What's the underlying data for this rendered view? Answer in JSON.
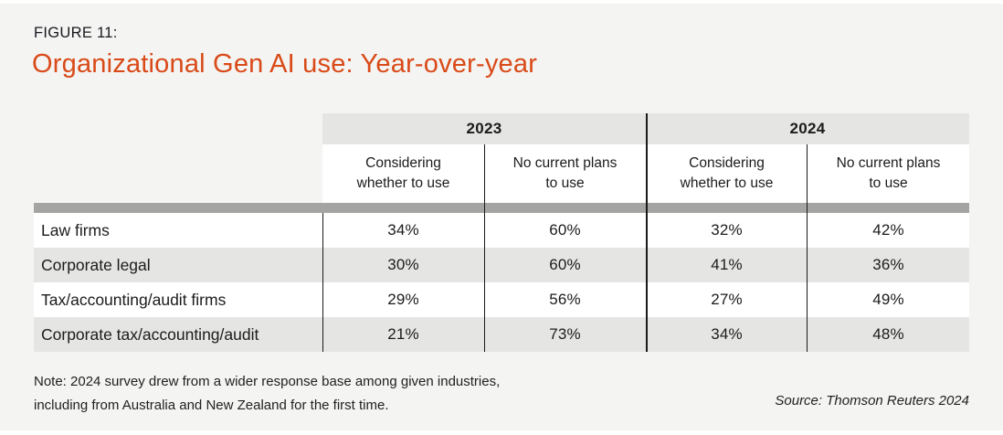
{
  "figure_label": "FIGURE 11:",
  "title": "Organizational Gen AI use: Year-over-year",
  "colors": {
    "accent_orange": "#d94a18",
    "panel_bg": "#f4f4f2",
    "header_gray": "#e5e5e3",
    "bar_gray": "#a4a4a2",
    "line_black": "#1a1a1a"
  },
  "table": {
    "year_headers": [
      "2023",
      "2024"
    ],
    "col_headers": [
      "Considering whether to use",
      "No current plans to use",
      "Considering whether to use",
      "No current plans to use"
    ],
    "rows": [
      {
        "label": "Law firms",
        "values": [
          "34%",
          "60%",
          "32%",
          "42%"
        ]
      },
      {
        "label": "Corporate legal",
        "values": [
          "30%",
          "60%",
          "41%",
          "36%"
        ]
      },
      {
        "label": "Tax/accounting/audit firms",
        "values": [
          "29%",
          "56%",
          "27%",
          "49%"
        ]
      },
      {
        "label": "Corporate tax/accounting/audit",
        "values": [
          "21%",
          "73%",
          "34%",
          "48%"
        ]
      }
    ]
  },
  "chart_data": {
    "type": "table",
    "title": "Organizational Gen AI use: Year-over-year",
    "figure_number": "FIGURE 11:",
    "unit": "%",
    "year_groups": [
      "2023",
      "2024"
    ],
    "sub_columns": [
      "Considering whether to use",
      "No current plans to use"
    ],
    "categories": [
      "Law firms",
      "Corporate legal",
      "Tax/accounting/audit firms",
      "Corporate tax/accounting/audit"
    ],
    "series": [
      {
        "name": "2023 Considering whether to use",
        "values": [
          34,
          30,
          29,
          21
        ]
      },
      {
        "name": "2023 No current plans to use",
        "values": [
          60,
          60,
          56,
          73
        ]
      },
      {
        "name": "2024 Considering whether to use",
        "values": [
          32,
          41,
          27,
          34
        ]
      },
      {
        "name": "2024 No current plans to use",
        "values": [
          42,
          36,
          49,
          48
        ]
      }
    ],
    "note": "Note: 2024 survey drew from a wider response base among given industries, including from Australia and New Zealand for the first time.",
    "source": "Source: Thomson Reuters 2024"
  },
  "footer": {
    "note_line1": "Note: 2024 survey drew from a wider response base among given industries,",
    "note_line2": "including from Australia and New Zealand for the first time.",
    "source": "Source: Thomson Reuters 2024"
  }
}
